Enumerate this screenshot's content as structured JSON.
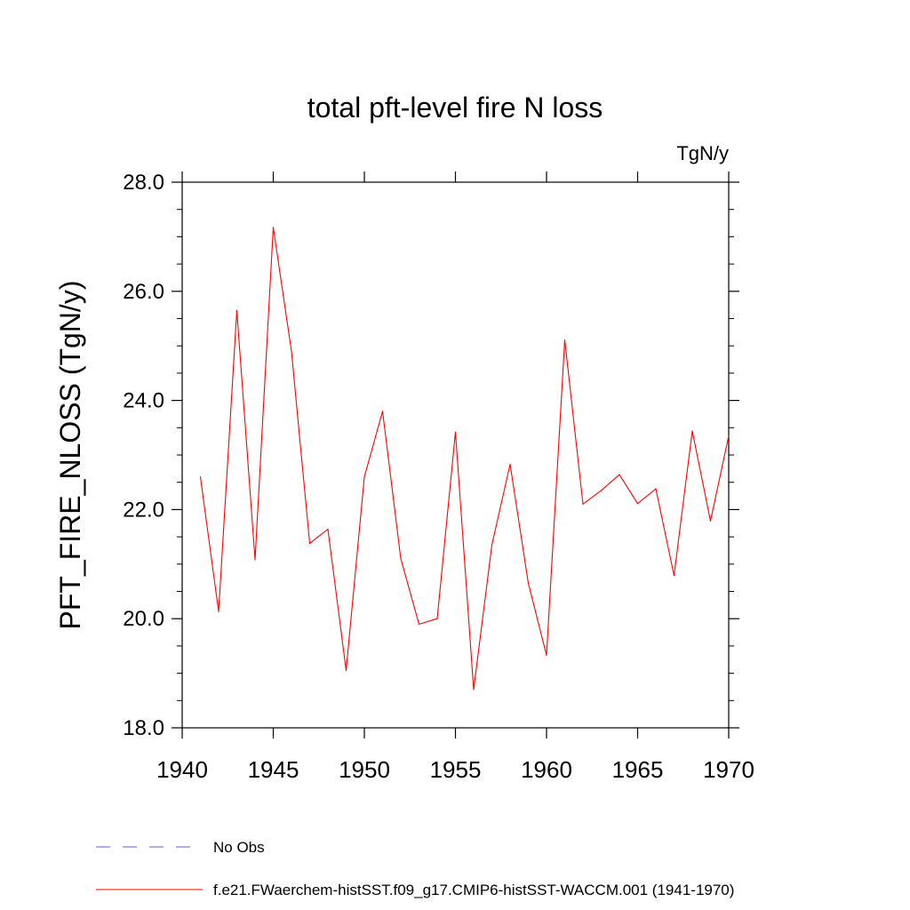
{
  "chart_data": {
    "type": "line",
    "title": "total pft-level fire N loss",
    "units": "TgN/y",
    "xlabel": "",
    "ylabel": "PFT_FIRE_NLOSS  (TgN/y)",
    "xlim": [
      1940,
      1970
    ],
    "ylim": [
      18.0,
      28.0
    ],
    "x_ticks": [
      "1940",
      "1945",
      "1950",
      "1955",
      "1960",
      "1965",
      "1970"
    ],
    "y_ticks": [
      "18.0",
      "20.0",
      "22.0",
      "24.0",
      "26.0",
      "28.0"
    ],
    "grid": false,
    "series": [
      {
        "name": "f.e21.FWaerchem-histSST.f09_g17.CMIP6-histSST-WACCM.001 (1941-1970)",
        "color": "#ff0000",
        "x": [
          1941,
          1942,
          1943,
          1944,
          1945,
          1946,
          1947,
          1948,
          1949,
          1950,
          1951,
          1952,
          1953,
          1954,
          1955,
          1956,
          1957,
          1958,
          1959,
          1960,
          1961,
          1962,
          1963,
          1964,
          1965,
          1966,
          1967,
          1968,
          1969,
          1970
        ],
        "values": [
          22.6,
          20.13,
          25.65,
          21.08,
          27.17,
          24.9,
          21.38,
          21.64,
          19.05,
          22.6,
          23.8,
          21.1,
          19.9,
          20.0,
          23.42,
          18.7,
          21.35,
          22.83,
          20.65,
          19.33,
          25.11,
          22.1,
          22.35,
          22.64,
          22.11,
          22.38,
          20.79,
          23.44,
          21.79,
          23.35
        ]
      }
    ],
    "legend": [
      {
        "label": "No Obs",
        "color": "#6a5acd",
        "style": "dashed"
      },
      {
        "label": "f.e21.FWaerchem-histSST.f09_g17.CMIP6-histSST-WACCM.001 (1941-1970)",
        "color": "#ff0000",
        "style": "solid"
      }
    ],
    "legend_position": "bottom-left"
  }
}
